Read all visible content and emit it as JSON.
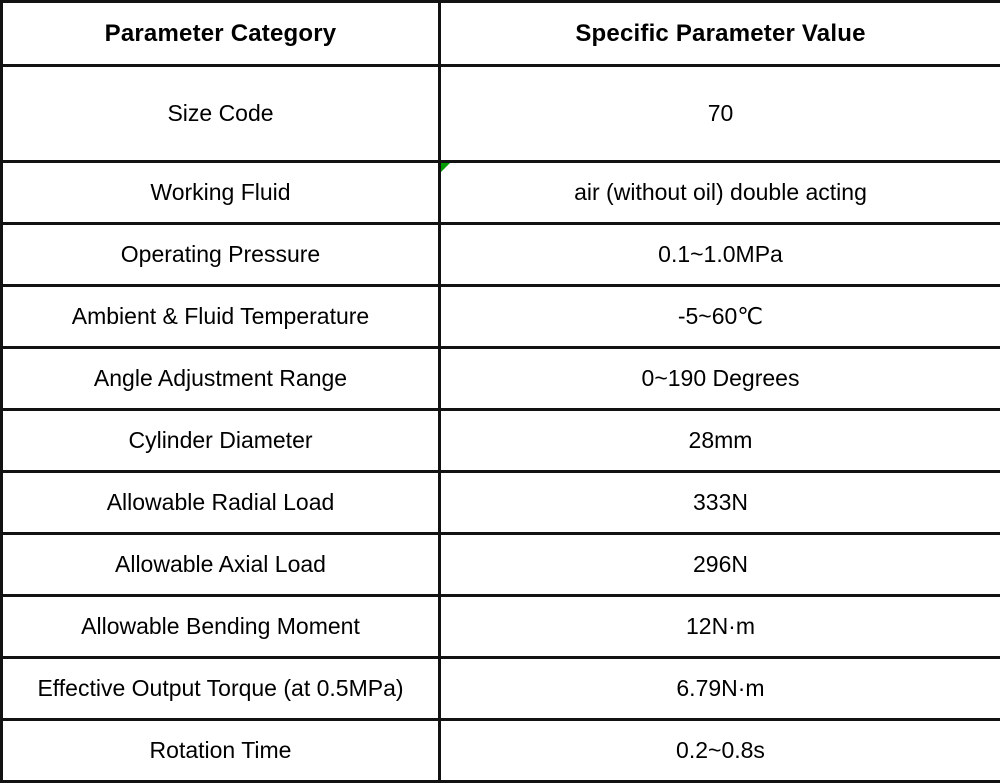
{
  "table": {
    "header": {
      "category": "Parameter Category",
      "value": "Specific Parameter Value"
    },
    "rows": [
      {
        "category": "Size Code",
        "value": "70"
      },
      {
        "category": "Working Fluid",
        "value": "air (without oil) double acting",
        "marker": true
      },
      {
        "category": "Operating Pressure",
        "value": "0.1~1.0MPa"
      },
      {
        "category": "Ambient & Fluid Temperature",
        "value": "-5~60℃"
      },
      {
        "category": "Angle Adjustment Range",
        "value": "0~190 Degrees"
      },
      {
        "category": "Cylinder Diameter",
        "value": "28mm"
      },
      {
        "category": "Allowable Radial Load",
        "value": "333N"
      },
      {
        "category": "Allowable Axial Load",
        "value": "296N"
      },
      {
        "category": "Allowable Bending Moment",
        "value": "12N·m"
      },
      {
        "category": "Effective Output Torque (at 0.5MPa)",
        "value": "6.79N·m"
      },
      {
        "category": "Rotation Time",
        "value": "0.2~0.8s"
      }
    ]
  },
  "colors": {
    "border": "#121212",
    "text": "#000000",
    "background": "#ffffff",
    "corner_marker_green": "#009b00"
  }
}
